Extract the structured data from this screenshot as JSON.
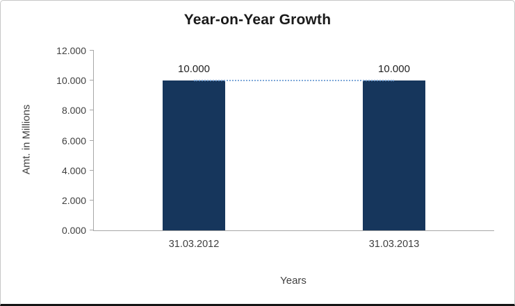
{
  "chart": {
    "title": "Year-on-Year Growth",
    "y_axis_title": "Amt. in Millions",
    "x_axis_title": "Years",
    "colors": {
      "bar_fill": "#16365c",
      "connector_dotted": "#7da7d8",
      "axis_line": "#a6a6a6",
      "tick_text": "#3f3f3f",
      "title_text": "#1a1a1a",
      "frame_border": "#c6c6c6"
    }
  },
  "chart_data": {
    "type": "bar",
    "title": "Year-on-Year Growth",
    "xlabel": "Years",
    "ylabel": "Amt. in Millions",
    "categories": [
      "31.03.2012",
      "31.03.2013"
    ],
    "values": [
      10000,
      10000
    ],
    "data_labels": [
      "10.000",
      "10.000"
    ],
    "ylim": [
      0,
      12000
    ],
    "y_tick_values": [
      0,
      2000,
      4000,
      6000,
      8000,
      10000,
      12000
    ],
    "y_tick_labels": [
      "0.000",
      "2.000",
      "4.000",
      "6.000",
      "8.000",
      "10.000",
      "12.000"
    ],
    "grid": false,
    "legend": false,
    "annotations": [
      {
        "type": "dotted-connector",
        "y": 10000,
        "from_category": "31.03.2012",
        "to_category": "31.03.2013"
      }
    ]
  }
}
